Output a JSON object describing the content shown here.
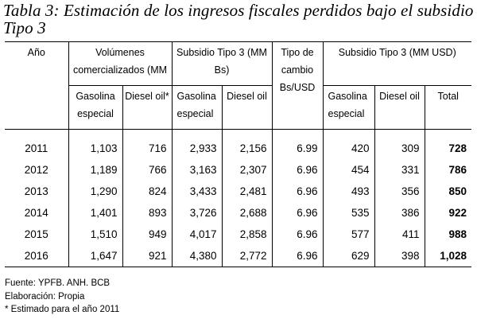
{
  "title": "Tabla 3: Estimación de los ingresos fiscales perdidos bajo el subsidio Tipo 3",
  "headers": {
    "year": "Año",
    "volumes": "Volúmenes comercializados (MM",
    "subsidy_bs": "Subsidio Tipo 3 (MM Bs)",
    "exchange_rate": "Tipo de cambio Bs/USD",
    "subsidy_usd": "Subsidio Tipo 3 (MM USD)",
    "gasoline": "Gasolina especial",
    "diesel_star": "Diesel oil*",
    "diesel": "Diesel oil",
    "total": "Total"
  },
  "rows": [
    {
      "year": "2011",
      "vol_gas": "1,103",
      "vol_diesel": "716",
      "bs_gas": "2,933",
      "bs_diesel": "2,156",
      "rate": "6.99",
      "usd_gas": "420",
      "usd_diesel": "309",
      "total": "728"
    },
    {
      "year": "2012",
      "vol_gas": "1,189",
      "vol_diesel": "766",
      "bs_gas": "3,163",
      "bs_diesel": "2,307",
      "rate": "6.96",
      "usd_gas": "454",
      "usd_diesel": "331",
      "total": "786"
    },
    {
      "year": "2013",
      "vol_gas": "1,290",
      "vol_diesel": "824",
      "bs_gas": "3,433",
      "bs_diesel": "2,481",
      "rate": "6.96",
      "usd_gas": "493",
      "usd_diesel": "356",
      "total": "850"
    },
    {
      "year": "2014",
      "vol_gas": "1,401",
      "vol_diesel": "893",
      "bs_gas": "3,726",
      "bs_diesel": "2,688",
      "rate": "6.96",
      "usd_gas": "535",
      "usd_diesel": "386",
      "total": "922"
    },
    {
      "year": "2015",
      "vol_gas": "1,510",
      "vol_diesel": "949",
      "bs_gas": "4,017",
      "bs_diesel": "2,858",
      "rate": "6.96",
      "usd_gas": "577",
      "usd_diesel": "411",
      "total": "988"
    },
    {
      "year": "2016",
      "vol_gas": "1,647",
      "vol_diesel": "921",
      "bs_gas": "4,380",
      "bs_diesel": "2,772",
      "rate": "6.96",
      "usd_gas": "629",
      "usd_diesel": "398",
      "total": "1,028"
    }
  ],
  "notes": {
    "source": "Fuente: YPFB. ANH. BCB",
    "elaboration": "Elaboración: Propia",
    "footnote": "* Estimado para el año 2011"
  }
}
